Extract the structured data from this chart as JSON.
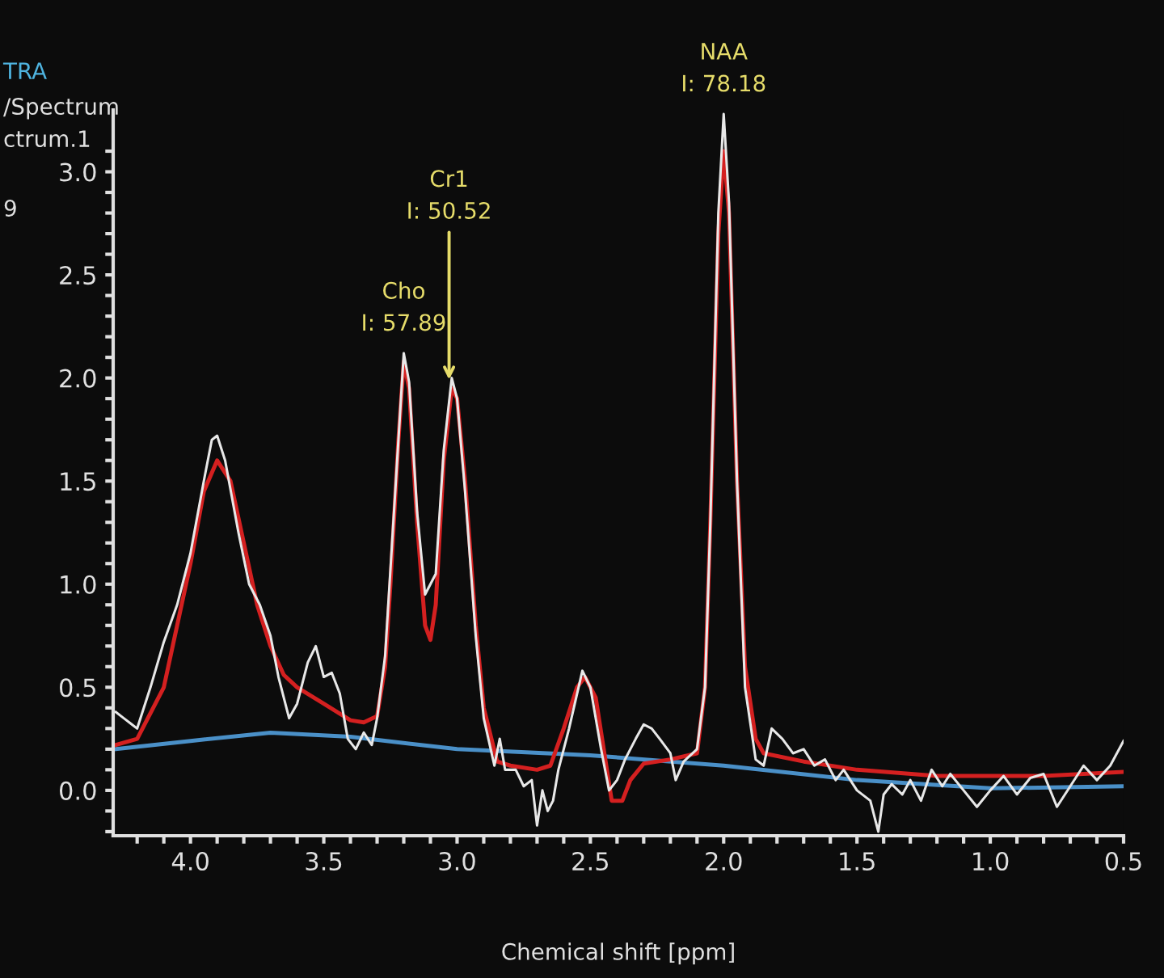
{
  "chart_data": {
    "type": "line",
    "xlabel": "Chemical shift [ppm]",
    "xlim": [
      4.29,
      0.5
    ],
    "ylim": [
      -0.22,
      3.3
    ],
    "xticks": [
      {
        "value": 4.2,
        "label": null
      },
      {
        "value": 4.1,
        "label": null
      },
      {
        "value": 4.0,
        "label": "4.0"
      },
      {
        "value": 3.9,
        "label": null
      },
      {
        "value": 3.8,
        "label": null
      },
      {
        "value": 3.7,
        "label": null
      },
      {
        "value": 3.6,
        "label": null
      },
      {
        "value": 3.5,
        "label": "3.5"
      },
      {
        "value": 3.4,
        "label": null
      },
      {
        "value": 3.3,
        "label": null
      },
      {
        "value": 3.2,
        "label": null
      },
      {
        "value": 3.1,
        "label": null
      },
      {
        "value": 3.0,
        "label": "3.0"
      },
      {
        "value": 2.9,
        "label": null
      },
      {
        "value": 2.8,
        "label": null
      },
      {
        "value": 2.7,
        "label": null
      },
      {
        "value": 2.6,
        "label": null
      },
      {
        "value": 2.5,
        "label": "2.5"
      },
      {
        "value": 2.4,
        "label": null
      },
      {
        "value": 2.3,
        "label": null
      },
      {
        "value": 2.2,
        "label": null
      },
      {
        "value": 2.1,
        "label": null
      },
      {
        "value": 2.0,
        "label": "2.0"
      },
      {
        "value": 1.9,
        "label": null
      },
      {
        "value": 1.8,
        "label": null
      },
      {
        "value": 1.7,
        "label": null
      },
      {
        "value": 1.6,
        "label": null
      },
      {
        "value": 1.5,
        "label": "1.5"
      },
      {
        "value": 1.4,
        "label": null
      },
      {
        "value": 1.3,
        "label": null
      },
      {
        "value": 1.2,
        "label": null
      },
      {
        "value": 1.1,
        "label": null
      },
      {
        "value": 1.0,
        "label": "1.0"
      },
      {
        "value": 0.9,
        "label": null
      },
      {
        "value": 0.8,
        "label": null
      },
      {
        "value": 0.7,
        "label": null
      },
      {
        "value": 0.6,
        "label": null
      },
      {
        "value": 0.5,
        "label": "0.5"
      }
    ],
    "yticks": [
      {
        "value": -0.2,
        "label": null
      },
      {
        "value": -0.1,
        "label": null
      },
      {
        "value": 0.0,
        "label": "0.0"
      },
      {
        "value": 0.1,
        "label": null
      },
      {
        "value": 0.2,
        "label": null
      },
      {
        "value": 0.3,
        "label": null
      },
      {
        "value": 0.4,
        "label": null
      },
      {
        "value": 0.5,
        "label": "0.5"
      },
      {
        "value": 0.6,
        "label": null
      },
      {
        "value": 0.7,
        "label": null
      },
      {
        "value": 0.8,
        "label": null
      },
      {
        "value": 0.9,
        "label": null
      },
      {
        "value": 1.0,
        "label": "1.0"
      },
      {
        "value": 1.1,
        "label": null
      },
      {
        "value": 1.2,
        "label": null
      },
      {
        "value": 1.3,
        "label": null
      },
      {
        "value": 1.4,
        "label": null
      },
      {
        "value": 1.5,
        "label": "1.5"
      },
      {
        "value": 1.6,
        "label": null
      },
      {
        "value": 1.7,
        "label": null
      },
      {
        "value": 1.8,
        "label": null
      },
      {
        "value": 1.9,
        "label": null
      },
      {
        "value": 2.0,
        "label": "2.0"
      },
      {
        "value": 2.1,
        "label": null
      },
      {
        "value": 2.2,
        "label": null
      },
      {
        "value": 2.3,
        "label": null
      },
      {
        "value": 2.4,
        "label": null
      },
      {
        "value": 2.5,
        "label": "2.5"
      },
      {
        "value": 2.6,
        "label": null
      },
      {
        "value": 2.7,
        "label": null
      },
      {
        "value": 2.8,
        "label": null
      },
      {
        "value": 2.9,
        "label": null
      },
      {
        "value": 3.0,
        "label": "3.0"
      },
      {
        "value": 3.1,
        "label": null
      }
    ],
    "grid": false,
    "legend": false,
    "series": [
      {
        "color": "#4a90c8",
        "x": [
          4.28,
          4.0,
          3.7,
          3.4,
          3.0,
          2.5,
          2.0,
          1.5,
          1.0,
          0.5
        ],
        "values": [
          0.2,
          0.24,
          0.28,
          0.26,
          0.2,
          0.17,
          0.12,
          0.05,
          0.01,
          0.02
        ]
      },
      {
        "color": "#d42020",
        "x": [
          4.28,
          4.2,
          4.1,
          4.0,
          3.95,
          3.9,
          3.85,
          3.8,
          3.75,
          3.7,
          3.65,
          3.6,
          3.5,
          3.45,
          3.4,
          3.35,
          3.3,
          3.27,
          3.25,
          3.22,
          3.2,
          3.18,
          3.15,
          3.12,
          3.1,
          3.08,
          3.05,
          3.02,
          3.0,
          2.97,
          2.93,
          2.9,
          2.85,
          2.8,
          2.7,
          2.65,
          2.6,
          2.55,
          2.52,
          2.48,
          2.45,
          2.42,
          2.38,
          2.35,
          2.3,
          2.2,
          2.1,
          2.07,
          2.05,
          2.02,
          2.0,
          1.98,
          1.95,
          1.92,
          1.88,
          1.85,
          1.7,
          1.5,
          1.2,
          0.8,
          0.5
        ],
        "values": [
          0.22,
          0.25,
          0.5,
          1.1,
          1.45,
          1.6,
          1.5,
          1.2,
          0.9,
          0.7,
          0.56,
          0.5,
          0.42,
          0.38,
          0.34,
          0.33,
          0.36,
          0.6,
          1.0,
          1.7,
          2.08,
          1.95,
          1.3,
          0.8,
          0.73,
          0.9,
          1.6,
          1.95,
          1.9,
          1.5,
          0.8,
          0.4,
          0.14,
          0.12,
          0.1,
          0.12,
          0.3,
          0.5,
          0.55,
          0.45,
          0.2,
          -0.05,
          -0.05,
          0.05,
          0.13,
          0.15,
          0.18,
          0.5,
          1.3,
          2.7,
          3.1,
          2.8,
          1.5,
          0.6,
          0.25,
          0.18,
          0.14,
          0.1,
          0.07,
          0.07,
          0.09
        ]
      },
      {
        "color": "#e8e8e8",
        "x": [
          4.28,
          4.25,
          4.22,
          4.2,
          4.15,
          4.1,
          4.05,
          4.0,
          3.95,
          3.92,
          3.9,
          3.87,
          3.82,
          3.78,
          3.74,
          3.7,
          3.67,
          3.63,
          3.6,
          3.56,
          3.53,
          3.5,
          3.47,
          3.44,
          3.41,
          3.38,
          3.35,
          3.32,
          3.3,
          3.27,
          3.22,
          3.2,
          3.18,
          3.15,
          3.12,
          3.1,
          3.08,
          3.05,
          3.02,
          3.0,
          2.97,
          2.93,
          2.9,
          2.86,
          2.84,
          2.82,
          2.78,
          2.75,
          2.72,
          2.7,
          2.68,
          2.66,
          2.64,
          2.62,
          2.58,
          2.53,
          2.5,
          2.46,
          2.43,
          2.4,
          2.37,
          2.33,
          2.3,
          2.27,
          2.24,
          2.2,
          2.18,
          2.15,
          2.1,
          2.07,
          2.05,
          2.02,
          2.0,
          1.98,
          1.95,
          1.92,
          1.88,
          1.85,
          1.82,
          1.78,
          1.74,
          1.7,
          1.66,
          1.62,
          1.58,
          1.55,
          1.5,
          1.45,
          1.42,
          1.4,
          1.37,
          1.33,
          1.3,
          1.26,
          1.22,
          1.18,
          1.15,
          1.1,
          1.05,
          1.0,
          0.95,
          0.9,
          0.85,
          0.8,
          0.75,
          0.7,
          0.65,
          0.6,
          0.55,
          0.5
        ],
        "values": [
          0.38,
          0.35,
          0.32,
          0.3,
          0.5,
          0.72,
          0.9,
          1.15,
          1.5,
          1.7,
          1.72,
          1.6,
          1.25,
          1.0,
          0.9,
          0.75,
          0.55,
          0.35,
          0.42,
          0.62,
          0.7,
          0.55,
          0.57,
          0.47,
          0.25,
          0.2,
          0.28,
          0.22,
          0.35,
          0.65,
          1.7,
          2.12,
          1.98,
          1.35,
          0.95,
          1.0,
          1.05,
          1.65,
          2.0,
          1.9,
          1.45,
          0.75,
          0.35,
          0.12,
          0.25,
          0.1,
          0.1,
          0.02,
          0.05,
          -0.17,
          0.0,
          -0.1,
          -0.05,
          0.1,
          0.3,
          0.58,
          0.5,
          0.2,
          0.0,
          0.05,
          0.15,
          0.25,
          0.32,
          0.3,
          0.25,
          0.18,
          0.05,
          0.14,
          0.2,
          0.5,
          1.3,
          2.8,
          3.28,
          2.85,
          1.5,
          0.5,
          0.15,
          0.12,
          0.3,
          0.25,
          0.18,
          0.2,
          0.12,
          0.15,
          0.05,
          0.1,
          0.0,
          -0.05,
          -0.2,
          -0.02,
          0.03,
          -0.02,
          0.05,
          -0.05,
          0.1,
          0.02,
          0.08,
          0.0,
          -0.08,
          0.0,
          0.07,
          -0.02,
          0.06,
          0.08,
          -0.08,
          0.02,
          0.12,
          0.05,
          0.12,
          0.24
        ]
      }
    ],
    "annotations": [
      {
        "text": "Cho\nI: 57.89",
        "x": 3.2,
        "y": 2.12
      },
      {
        "text": "Cr1\nI: 50.52",
        "x": 3.03,
        "y": 1.97
      },
      {
        "text": "NAA\nI: 78.18",
        "x": 2.0,
        "y": 3.28
      },
      "TRA",
      "/Spectrum",
      "ctrum.1",
      "9"
    ]
  }
}
